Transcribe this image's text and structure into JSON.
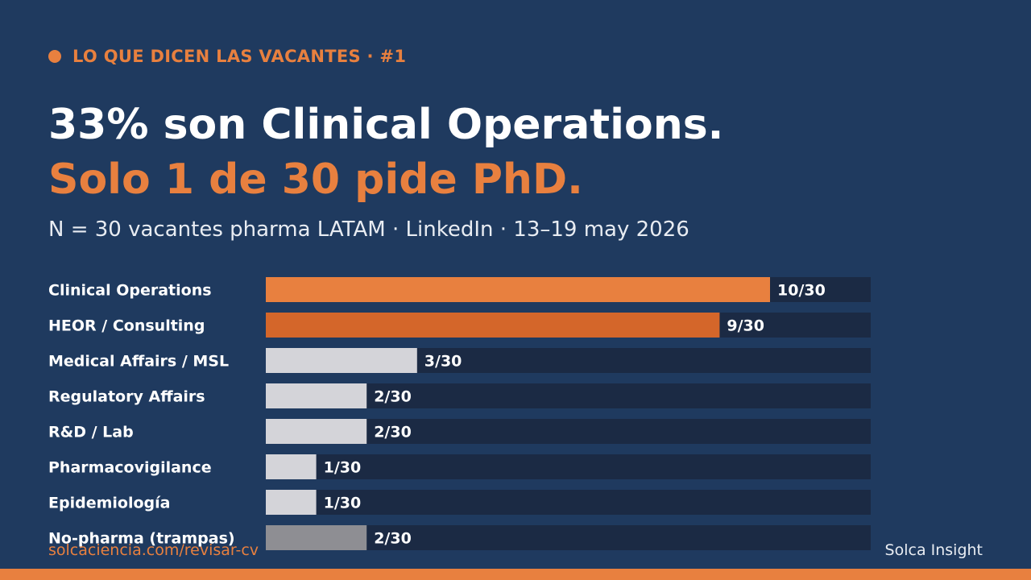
{
  "header": {
    "kicker": "LO QUE DICEN LAS VACANTES · #1",
    "headline": "33% son Clinical Operations.",
    "headline_accent": "Solo 1 de 30 pide PhD.",
    "subtitle": "N = 30 vacantes pharma LATAM · LinkedIn · 13–19 may 2026"
  },
  "colors": {
    "background": "#1f3a5f",
    "accent": "#e8803f",
    "accent_dark": "#d4662a",
    "neutral": "#d4d4d9",
    "muted": "#8e8e93",
    "track": "#1b2a44"
  },
  "chart_data": {
    "type": "bar",
    "orientation": "horizontal",
    "categories": [
      "Clinical Operations",
      "HEOR / Consulting",
      "Medical Affairs / MSL",
      "Regulatory Affairs",
      "R&D / Lab",
      "Pharmacovigilance",
      "Epidemiología",
      "No-pharma (trampas)"
    ],
    "values": [
      10,
      9,
      3,
      2,
      2,
      1,
      1,
      2
    ],
    "total": 30,
    "value_labels": [
      "10/30",
      "9/30",
      "3/30",
      "2/30",
      "2/30",
      "1/30",
      "1/30",
      "2/30"
    ],
    "bar_colors": [
      "#e8803f",
      "#d4662a",
      "#d4d4d9",
      "#d4d4d9",
      "#d4d4d9",
      "#d4d4d9",
      "#d4d4d9",
      "#8e8e93"
    ],
    "xlim": [
      0,
      12
    ]
  },
  "footer": {
    "left": "solcaciencia.com/revisar-cv",
    "right": "Solca Insight"
  }
}
